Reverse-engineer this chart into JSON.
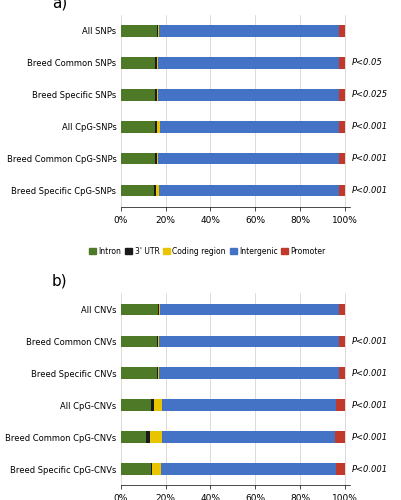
{
  "panel_a": {
    "title": "a)",
    "categories": [
      "All SNPs",
      "Breed Common SNPs",
      "Breed Specific SNPs",
      "All CpG-SNPs",
      "Breed Common CpG-SNPs",
      "Breed Specific CpG-SNPs"
    ],
    "pvalues": [
      "",
      "P<0.05",
      "P<0.025",
      "P<0.001",
      "P<0.001",
      "P<0.001"
    ],
    "data": {
      "Intron": [
        16.0,
        15.5,
        15.5,
        15.5,
        15.5,
        15.0
      ],
      "3' UTR": [
        0.8,
        0.8,
        0.8,
        0.5,
        0.5,
        0.8
      ],
      "Coding region": [
        0.5,
        0.5,
        0.5,
        1.5,
        0.5,
        1.5
      ],
      "Intergenic": [
        79.7,
        80.2,
        80.2,
        79.5,
        80.5,
        79.7
      ],
      "Promoter": [
        3.0,
        3.0,
        3.0,
        3.0,
        3.0,
        3.0
      ]
    }
  },
  "panel_b": {
    "title": "b)",
    "categories": [
      "All CNVs",
      "Breed Common CNVs",
      "Breed Specific CNVs",
      "All CpG-CNVs",
      "Breed Common CpG-CNVs",
      "Breed Specific CpG-CNVs"
    ],
    "pvalues": [
      "",
      "P<0.001",
      "P<0.001",
      "P<0.001",
      "P<0.001",
      "P<0.001"
    ],
    "data": {
      "Intron": [
        16.5,
        16.0,
        16.0,
        13.5,
        11.5,
        13.5
      ],
      "3' UTR": [
        0.5,
        0.5,
        0.5,
        1.5,
        1.5,
        0.5
      ],
      "Coding region": [
        0.5,
        0.5,
        0.5,
        3.5,
        5.5,
        4.0
      ],
      "Intergenic": [
        79.5,
        80.0,
        80.0,
        77.5,
        77.0,
        78.0
      ],
      "Promoter": [
        3.0,
        3.0,
        3.0,
        4.0,
        4.5,
        4.0
      ]
    }
  },
  "colors": {
    "Intron": "#4e7a28",
    "3' UTR": "#1a1a1a",
    "Coding region": "#e8c500",
    "Intergenic": "#4472c4",
    "Promoter": "#c0392b"
  },
  "legend_labels": [
    "Intron",
    "3' UTR",
    "Coding region",
    "Intergenic",
    "Promoter"
  ],
  "background_color": "#ffffff"
}
